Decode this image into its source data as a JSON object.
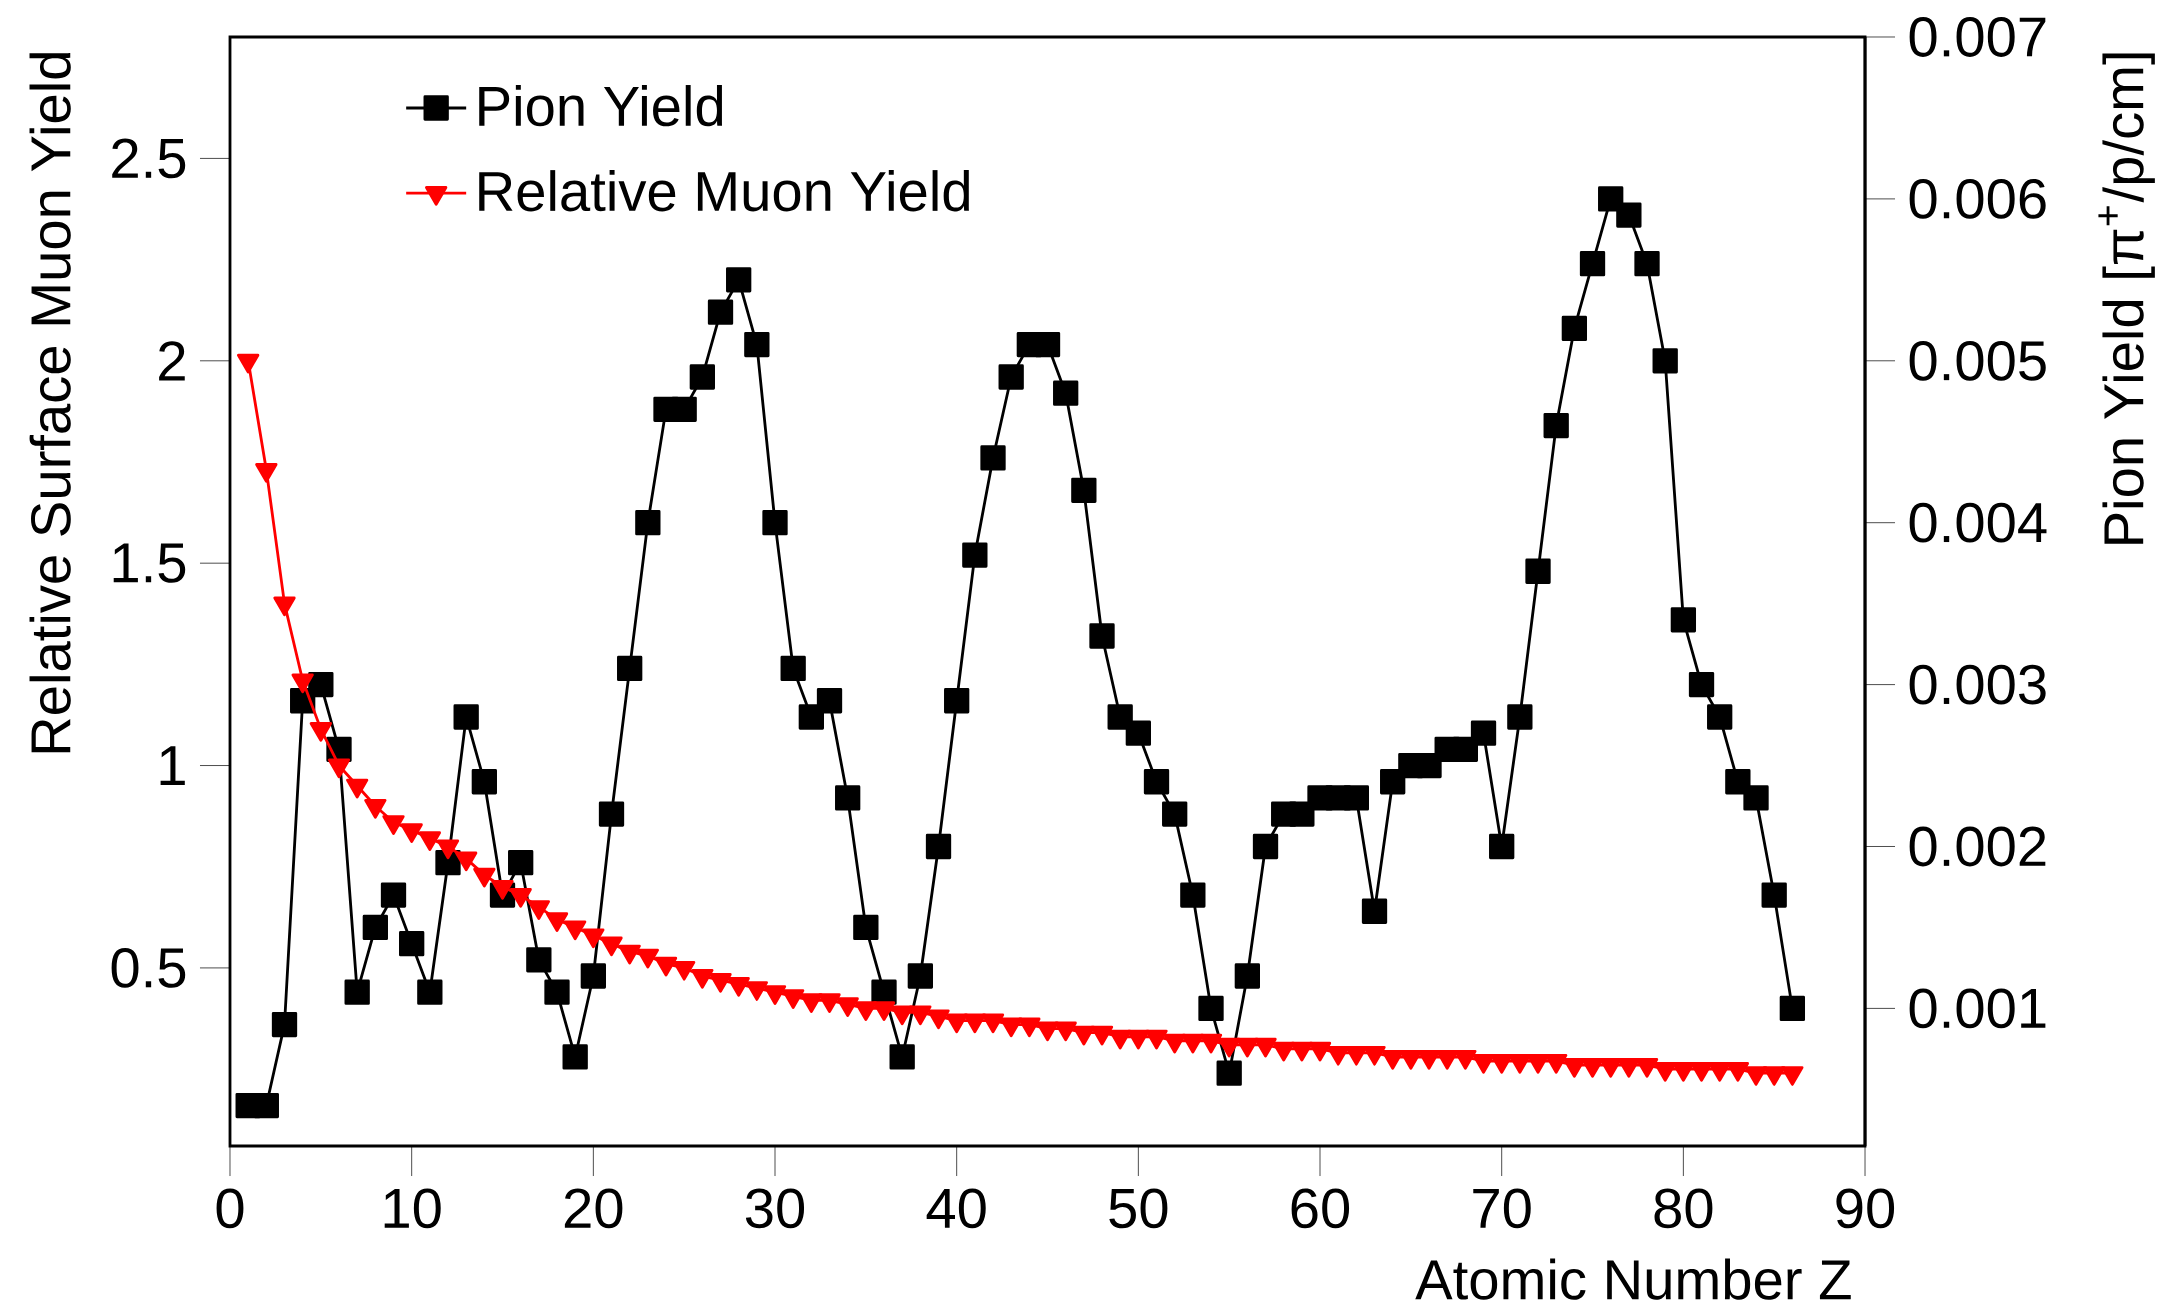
{
  "chart_data": {
    "type": "line",
    "xlabel": "Atomic Number Z",
    "ylabel": "Relative Surface Muon Yield",
    "y2label": "Pion Yield [π$^{+}$/p/cm]",
    "x": [
      1,
      2,
      3,
      4,
      5,
      6,
      7,
      8,
      9,
      10,
      11,
      12,
      13,
      14,
      15,
      16,
      17,
      18,
      19,
      20,
      21,
      22,
      23,
      24,
      25,
      26,
      27,
      28,
      29,
      30,
      31,
      32,
      33,
      34,
      35,
      36,
      37,
      38,
      39,
      40,
      41,
      42,
      43,
      44,
      45,
      46,
      47,
      48,
      49,
      50,
      51,
      52,
      53,
      54,
      55,
      56,
      57,
      58,
      59,
      60,
      61,
      62,
      63,
      64,
      65,
      66,
      67,
      68,
      69,
      70,
      71,
      72,
      73,
      74,
      75,
      76,
      77,
      78,
      79,
      80,
      81,
      82,
      83,
      84,
      85,
      86
    ],
    "series": [
      {
        "name": "Pion Yield",
        "color": "#000000",
        "marker": "square",
        "axis": "y2",
        "values": [
          0.0004,
          0.0004,
          0.0009,
          0.0029,
          0.003,
          0.0026,
          0.0011,
          0.0015,
          0.0017,
          0.0014,
          0.0011,
          0.0019,
          0.0028,
          0.0024,
          0.0017,
          0.0019,
          0.0013,
          0.0011,
          0.0007,
          0.0012,
          0.0022,
          0.0031,
          0.004,
          0.0047,
          0.0047,
          0.0049,
          0.0053,
          0.0055,
          0.0051,
          0.004,
          0.0031,
          0.0028,
          0.0029,
          0.0023,
          0.0015,
          0.0011,
          0.0007,
          0.0012,
          0.002,
          0.0029,
          0.0038,
          0.0044,
          0.0049,
          0.0051,
          0.0051,
          0.0048,
          0.0042,
          0.0033,
          0.0028,
          0.0027,
          0.0024,
          0.0022,
          0.0017,
          0.001,
          0.0006,
          0.0012,
          0.002,
          0.0022,
          0.0022,
          0.0023,
          0.0023,
          0.0023,
          0.0016,
          0.0024,
          0.0025,
          0.0025,
          0.0026,
          0.0026,
          0.0027,
          0.002,
          0.0028,
          0.0037,
          0.0046,
          0.0052,
          0.0056,
          0.006,
          0.0059,
          0.0056,
          0.005,
          0.0034,
          0.003,
          0.0028,
          0.0024,
          0.0023,
          0.0017,
          0.001
        ]
      },
      {
        "name": "Relative Muon Yield",
        "color": "#ff0000",
        "marker": "triangle",
        "values": [
          2.0,
          1.73,
          1.4,
          1.21,
          1.09,
          1.0,
          0.95,
          0.9,
          0.86,
          0.84,
          0.82,
          0.8,
          0.77,
          0.73,
          0.7,
          0.68,
          0.65,
          0.62,
          0.6,
          0.58,
          0.56,
          0.54,
          0.53,
          0.51,
          0.5,
          0.48,
          0.47,
          0.46,
          0.45,
          0.44,
          0.43,
          0.42,
          0.42,
          0.41,
          0.4,
          0.4,
          0.39,
          0.39,
          0.38,
          0.37,
          0.37,
          0.37,
          0.36,
          0.36,
          0.35,
          0.35,
          0.34,
          0.34,
          0.33,
          0.33,
          0.33,
          0.32,
          0.32,
          0.32,
          0.31,
          0.31,
          0.31,
          0.3,
          0.3,
          0.3,
          0.29,
          0.29,
          0.29,
          0.28,
          0.28,
          0.28,
          0.28,
          0.28,
          0.27,
          0.27,
          0.27,
          0.27,
          0.27,
          0.26,
          0.26,
          0.26,
          0.26,
          0.26,
          0.25,
          0.25,
          0.25,
          0.25,
          0.25,
          0.24,
          0.24,
          0.24
        ]
      }
    ],
    "xlim": [
      0,
      90
    ],
    "xticks": [
      0,
      10,
      20,
      30,
      40,
      50,
      60,
      70,
      80,
      90
    ],
    "ylim": [
      0.06,
      2.8
    ],
    "yticks": [
      0.5,
      1,
      1.5,
      2,
      2.5
    ],
    "y2lim": [
      0.00015,
      0.007
    ],
    "y2ticks": [
      0.001,
      0.002,
      0.003,
      0.004,
      0.005,
      0.006,
      0.007
    ],
    "grid": false,
    "legend": "top left",
    "line_style": "solid"
  }
}
